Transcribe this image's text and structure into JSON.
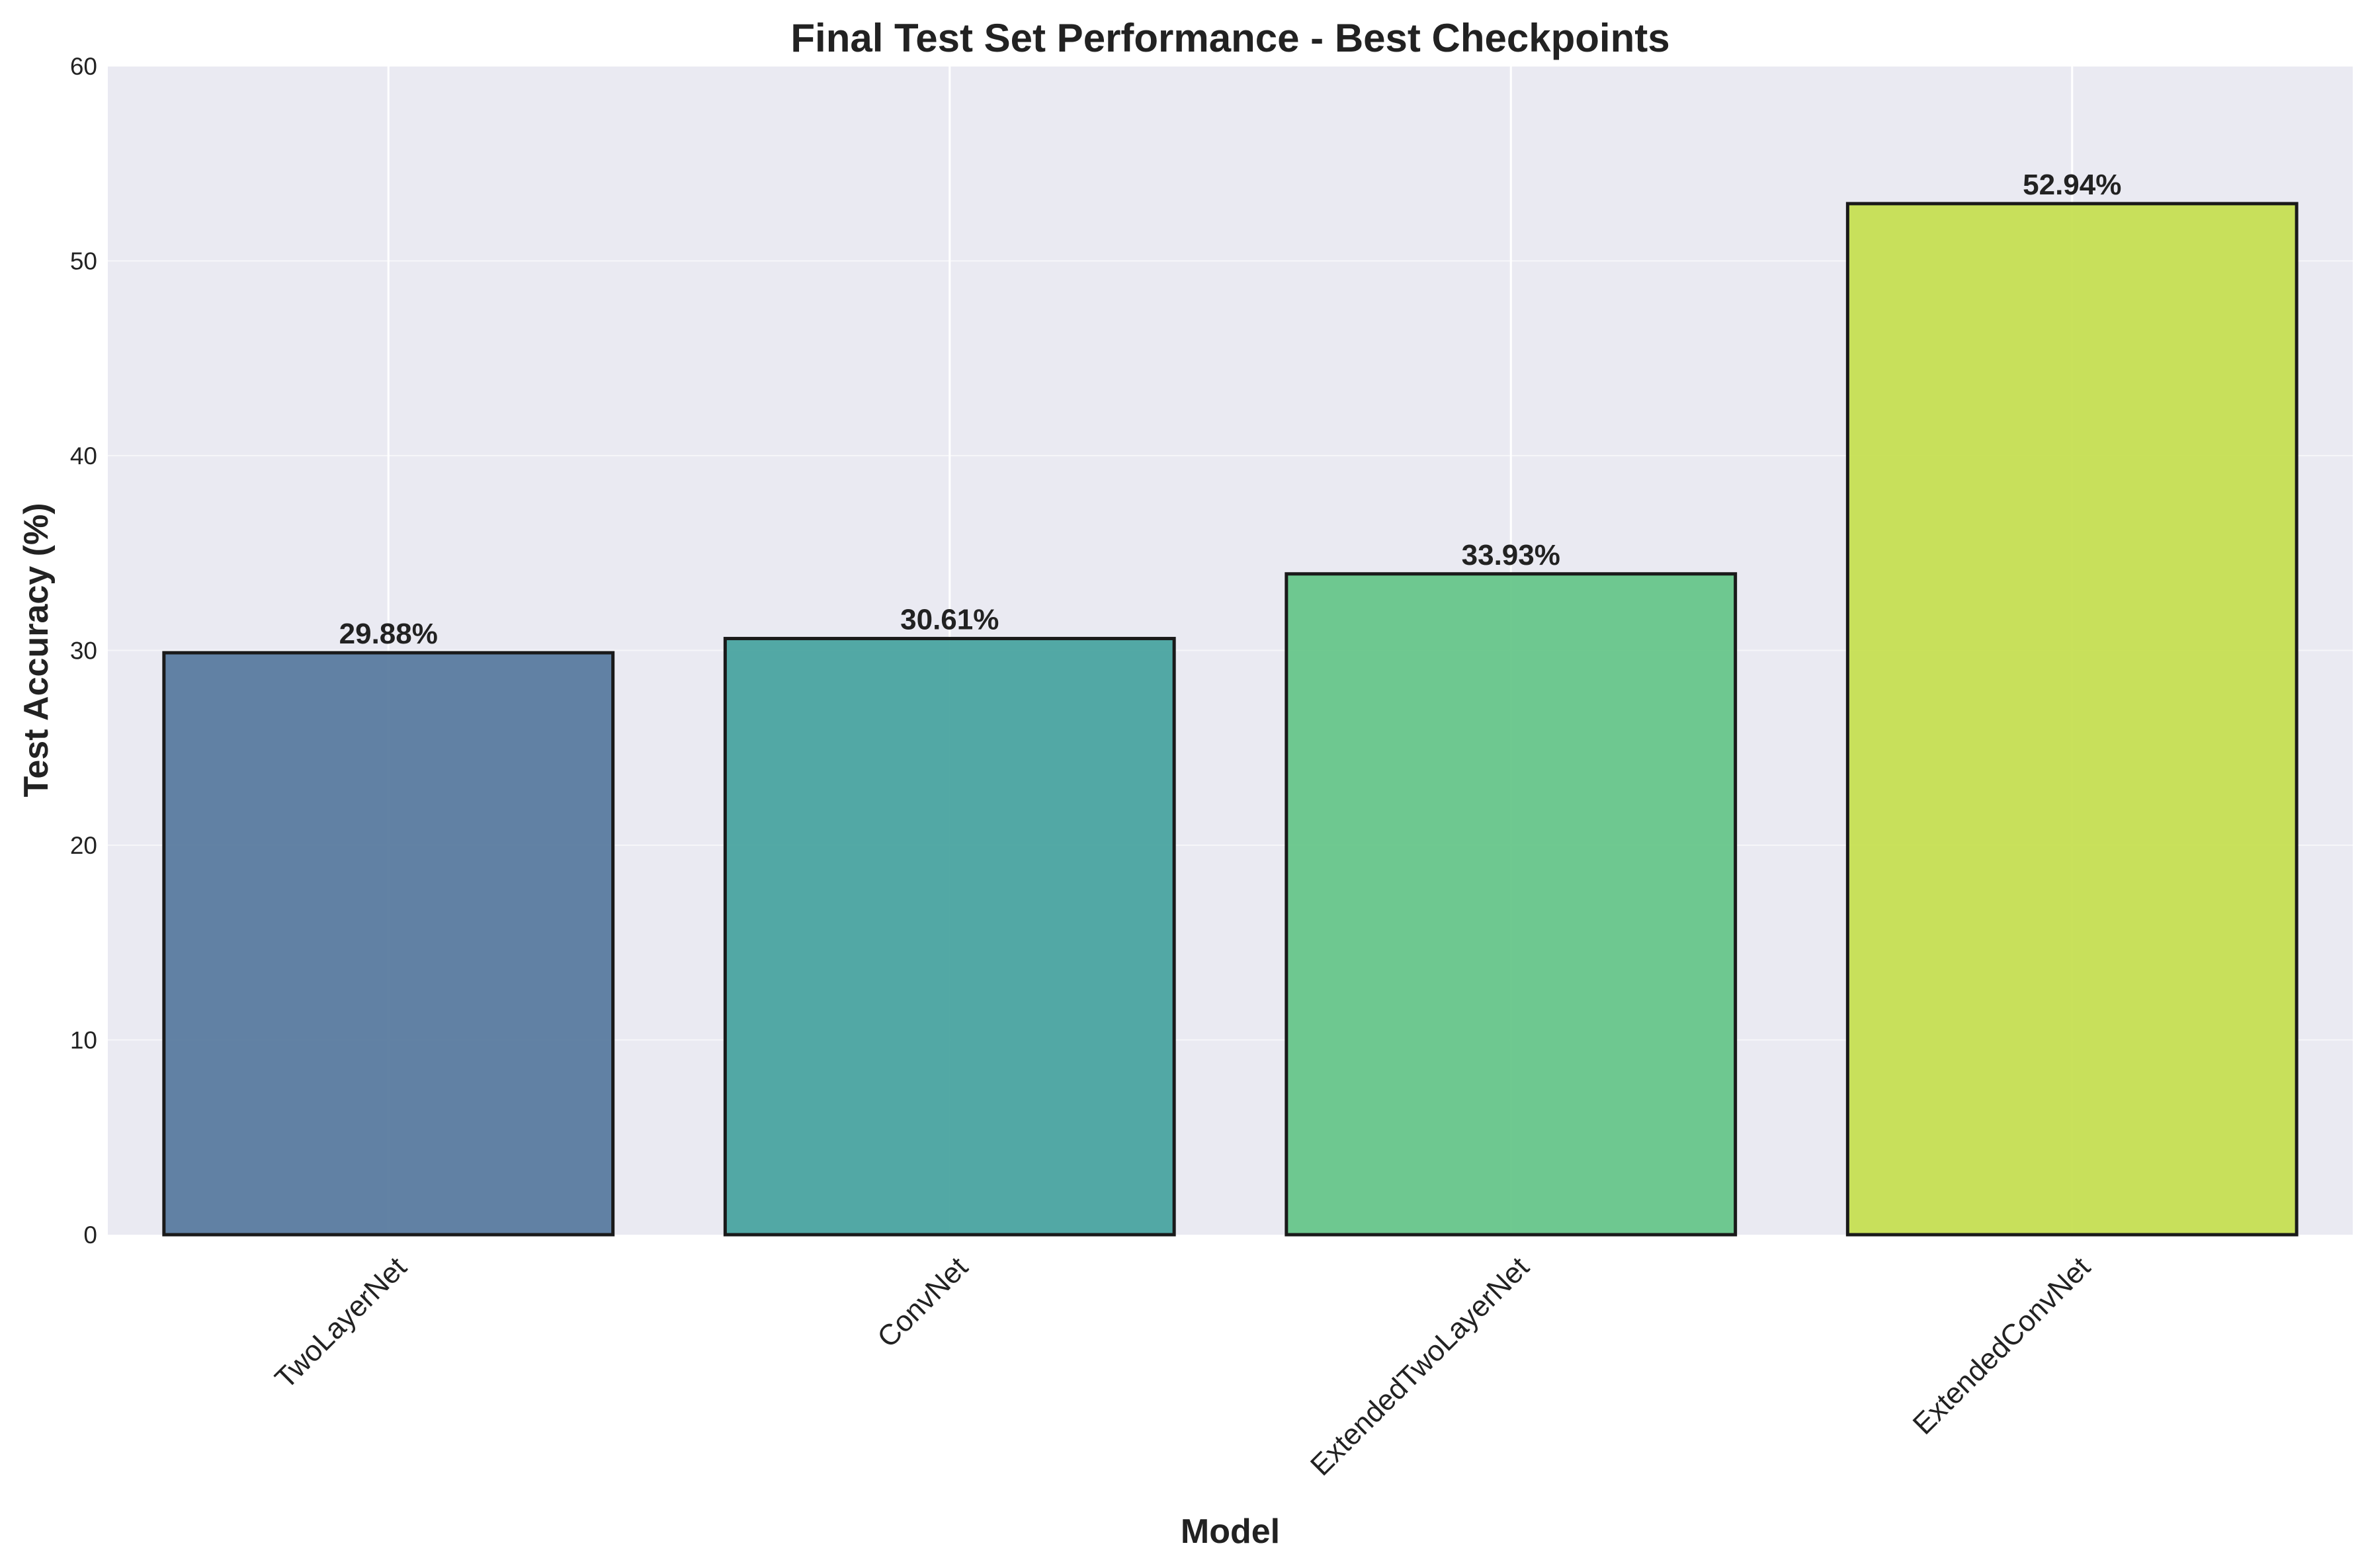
{
  "chart_data": {
    "type": "bar",
    "title": "Final Test Set Performance - Best Checkpoints",
    "xlabel": "Model",
    "ylabel": "Test Accuracy (%)",
    "categories": [
      "TwoLayerNet",
      "ConvNet",
      "ExtendedTwoLayerNet",
      "ExtendedConvNet"
    ],
    "values": [
      29.88,
      30.61,
      33.93,
      52.94
    ],
    "data_labels": [
      "29.88%",
      "30.61%",
      "33.93%",
      "52.94%"
    ],
    "ylim": [
      0,
      60
    ],
    "yticks": [
      0,
      10,
      20,
      30,
      40,
      50,
      60
    ],
    "ytick_labels": [
      "0",
      "10",
      "20",
      "30",
      "40",
      "50",
      "60"
    ],
    "grid": true,
    "x_tick_rotation": "45 degrees",
    "colors": {
      "plot_background": "#eaeaf2",
      "grid": "#ffffff",
      "bar_edge": "#1a1a1a",
      "bars": [
        "#5a7b9f",
        "#4aa4a0",
        "#67c68a",
        "#c6df52"
      ]
    }
  }
}
